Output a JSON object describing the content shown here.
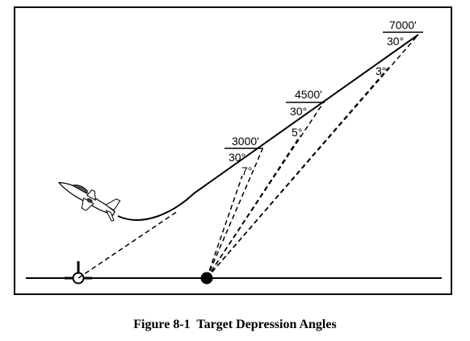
{
  "diagram": {
    "release_points": [
      {
        "altitude": "3000'",
        "dive_angle": "30°",
        "depression_angle": "7°"
      },
      {
        "altitude": "4500'",
        "dive_angle": "30°",
        "depression_angle": "5°"
      },
      {
        "altitude": "7000'",
        "dive_angle": "30°",
        "depression_angle": "3°"
      }
    ],
    "icons": [
      "aircraft-icon",
      "target-icon",
      "aimpoint-icon"
    ]
  },
  "caption": {
    "figure_number": "Figure 8-1",
    "title": "Target Depression Angles"
  }
}
